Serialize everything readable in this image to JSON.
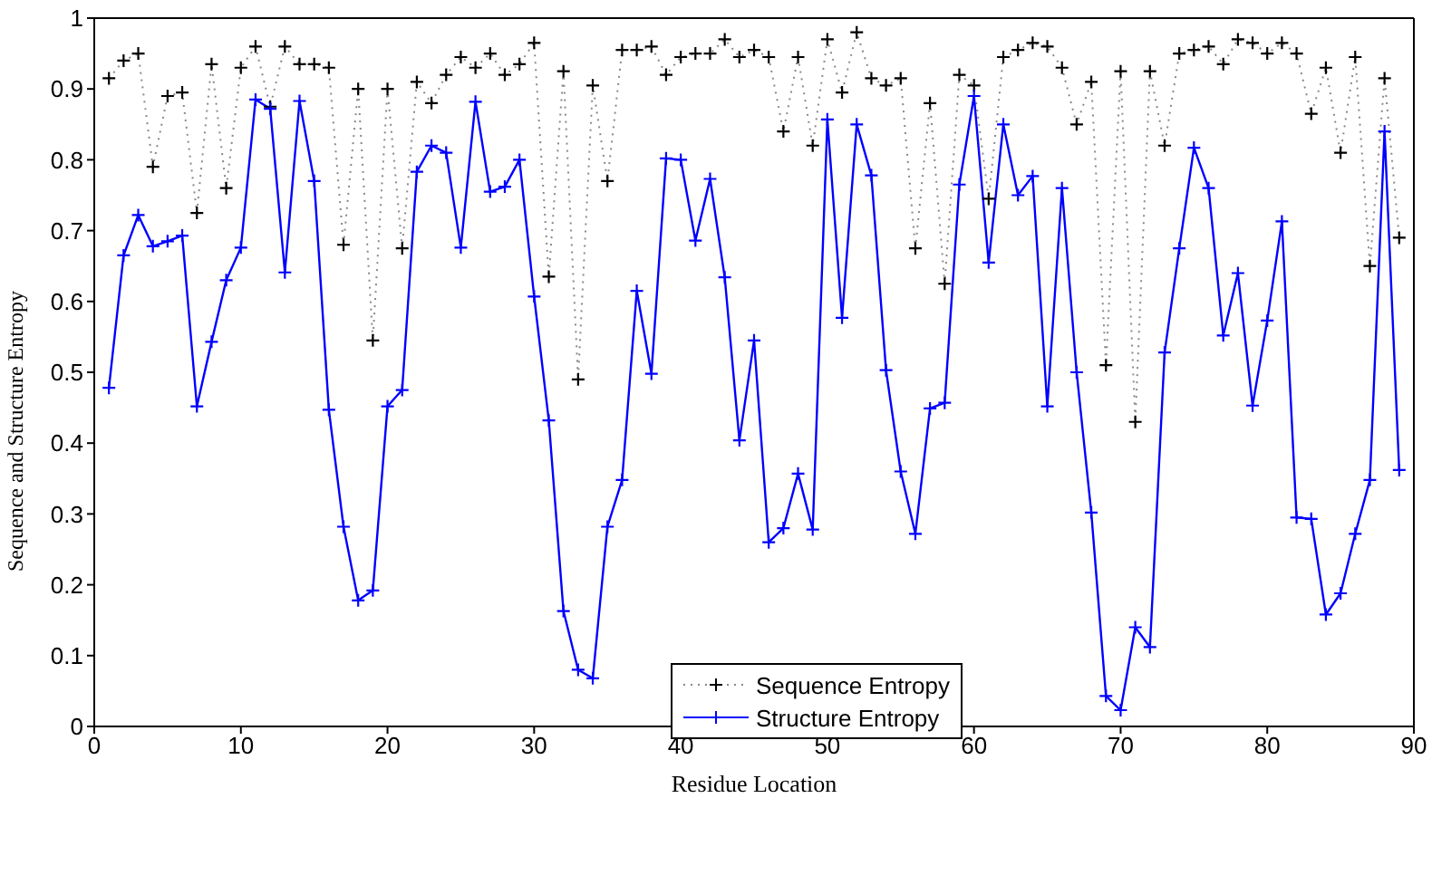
{
  "chart_data": {
    "type": "line",
    "xlabel": "Residue Location",
    "ylabel": "Sequence and Structure Entropy",
    "x": [
      1,
      2,
      3,
      4,
      5,
      6,
      7,
      8,
      9,
      10,
      11,
      12,
      13,
      14,
      15,
      16,
      17,
      18,
      19,
      20,
      21,
      22,
      23,
      24,
      25,
      26,
      27,
      28,
      29,
      30,
      31,
      32,
      33,
      34,
      35,
      36,
      37,
      38,
      39,
      40,
      41,
      42,
      43,
      44,
      45,
      46,
      47,
      48,
      49,
      50,
      51,
      52,
      53,
      54,
      55,
      56,
      57,
      58,
      59,
      60,
      61,
      62,
      63,
      64,
      65,
      66,
      67,
      68,
      69,
      70,
      71,
      72,
      73,
      74,
      75,
      76,
      77,
      78,
      79,
      80,
      81,
      82,
      83,
      84,
      85,
      86,
      87,
      88,
      89
    ],
    "series": [
      {
        "name": "Sequence Entropy",
        "color": "#000000",
        "marker": "cross",
        "line_style": "dotted",
        "values": [
          0.915,
          0.94,
          0.95,
          0.79,
          0.89,
          0.895,
          0.725,
          0.935,
          0.76,
          0.93,
          0.96,
          0.875,
          0.96,
          0.935,
          0.935,
          0.93,
          0.68,
          0.9,
          0.545,
          0.9,
          0.675,
          0.91,
          0.88,
          0.92,
          0.945,
          0.93,
          0.95,
          0.92,
          0.935,
          0.965,
          0.635,
          0.925,
          0.49,
          0.905,
          0.77,
          0.955,
          0.955,
          0.96,
          0.92,
          0.945,
          0.95,
          0.95,
          0.97,
          0.945,
          0.955,
          0.945,
          0.84,
          0.945,
          0.82,
          0.97,
          0.895,
          0.98,
          0.915,
          0.905,
          0.915,
          0.675,
          0.88,
          0.625,
          0.92,
          0.905,
          0.745,
          0.945,
          0.955,
          0.965,
          0.96,
          0.93,
          0.85,
          0.91,
          0.51,
          0.925,
          0.43,
          0.925,
          0.82,
          0.95,
          0.955,
          0.96,
          0.935,
          0.97,
          0.965,
          0.95,
          0.965,
          0.95,
          0.865,
          0.93,
          0.81,
          0.945,
          0.65,
          0.915,
          0.69
        ]
      },
      {
        "name": "Structure Entropy",
        "color": "#0000ff",
        "marker": "cross",
        "line_style": "solid",
        "values": [
          0.478,
          0.665,
          0.722,
          0.678,
          0.685,
          0.693,
          0.452,
          0.543,
          0.63,
          0.676,
          0.885,
          0.872,
          0.641,
          0.883,
          0.77,
          0.447,
          0.282,
          0.178,
          0.192,
          0.452,
          0.475,
          0.783,
          0.82,
          0.81,
          0.676,
          0.882,
          0.755,
          0.762,
          0.8,
          0.607,
          0.432,
          0.163,
          0.08,
          0.068,
          0.282,
          0.348,
          0.615,
          0.498,
          0.802,
          0.8,
          0.686,
          0.773,
          0.634,
          0.404,
          0.545,
          0.26,
          0.28,
          0.357,
          0.278,
          0.857,
          0.577,
          0.85,
          0.778,
          0.503,
          0.36,
          0.272,
          0.449,
          0.457,
          0.765,
          0.89,
          0.655,
          0.85,
          0.75,
          0.777,
          0.452,
          0.76,
          0.5,
          0.302,
          0.043,
          0.023,
          0.14,
          0.112,
          0.528,
          0.675,
          0.817,
          0.76,
          0.552,
          0.64,
          0.453,
          0.573,
          0.713,
          0.295,
          0.293,
          0.158,
          0.188,
          0.272,
          0.348,
          0.84,
          0.362
        ]
      }
    ],
    "xlim": [
      0,
      90
    ],
    "xticks": [
      0,
      10,
      20,
      30,
      40,
      50,
      60,
      70,
      80,
      90
    ],
    "ylim": [
      0,
      1
    ],
    "yticks": [
      0,
      0.1,
      0.2,
      0.3,
      0.4,
      0.5,
      0.6,
      0.7,
      0.8,
      0.9,
      1
    ],
    "grid": false,
    "legend": "bottom"
  }
}
